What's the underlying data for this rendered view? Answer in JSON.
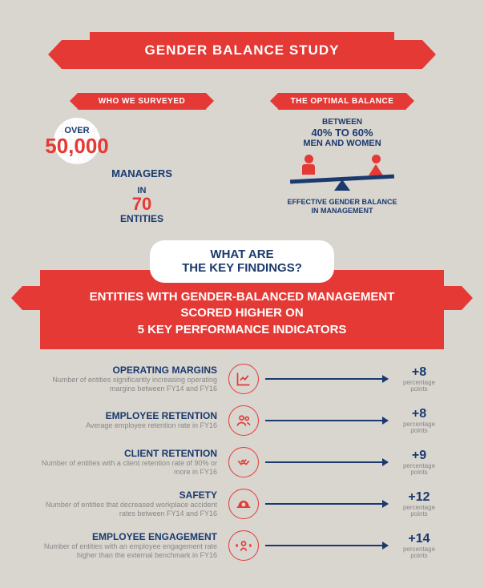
{
  "colors": {
    "red": "#e53935",
    "navy": "#1a3a6e",
    "bg": "#d9d5cf"
  },
  "title": "GENDER BALANCE STUDY",
  "survey": {
    "flag": "WHO WE SURVEYED",
    "over": "OVER",
    "count": "50,000",
    "managers": "MANAGERS",
    "in": "IN",
    "entities_count": "70",
    "entities": "ENTITIES"
  },
  "optimal": {
    "flag": "THE OPTIMAL BALANCE",
    "between": "BETWEEN",
    "range": "40% TO 60%",
    "mw": "MEN AND WOMEN",
    "effective_l1": "EFFECTIVE GENDER BALANCE",
    "effective_l2": "IN MANAGEMENT"
  },
  "findings": {
    "bubble_l1": "WHAT ARE",
    "bubble_l2": "THE KEY FINDINGS?",
    "band_l1": "ENTITIES WITH GENDER-BALANCED MANAGEMENT",
    "band_l2": "SCORED HIGHER ON",
    "band_l3": "5 KEY PERFORMANCE INDICATORS"
  },
  "kpis": [
    {
      "title": "OPERATING MARGINS",
      "desc": "Number of entities significantly increasing operating margins between FY14 and FY16",
      "value": "+8",
      "unit_l1": "percentage",
      "unit_l2": "points",
      "icon": "chart"
    },
    {
      "title": "EMPLOYEE RETENTION",
      "desc": "Average employee retention rate in FY16",
      "value": "+8",
      "unit_l1": "percentage",
      "unit_l2": "points",
      "icon": "people"
    },
    {
      "title": "CLIENT RETENTION",
      "desc": "Number of entities with a client retention rate of 90% or more in FY16",
      "value": "+9",
      "unit_l1": "percentage",
      "unit_l2": "points",
      "icon": "handshake"
    },
    {
      "title": "SAFETY",
      "desc": "Number of entities that decreased workplace accident rates between FY14 and FY16",
      "value": "+12",
      "unit_l1": "percentage",
      "unit_l2": "points",
      "icon": "hardhat"
    },
    {
      "title": "EMPLOYEE ENGAGEMENT",
      "desc": "Number of entities with an employee engagement rate higher than the external benchmark in FY16",
      "value": "+14",
      "unit_l1": "percentage",
      "unit_l2": "points",
      "icon": "engage"
    }
  ]
}
